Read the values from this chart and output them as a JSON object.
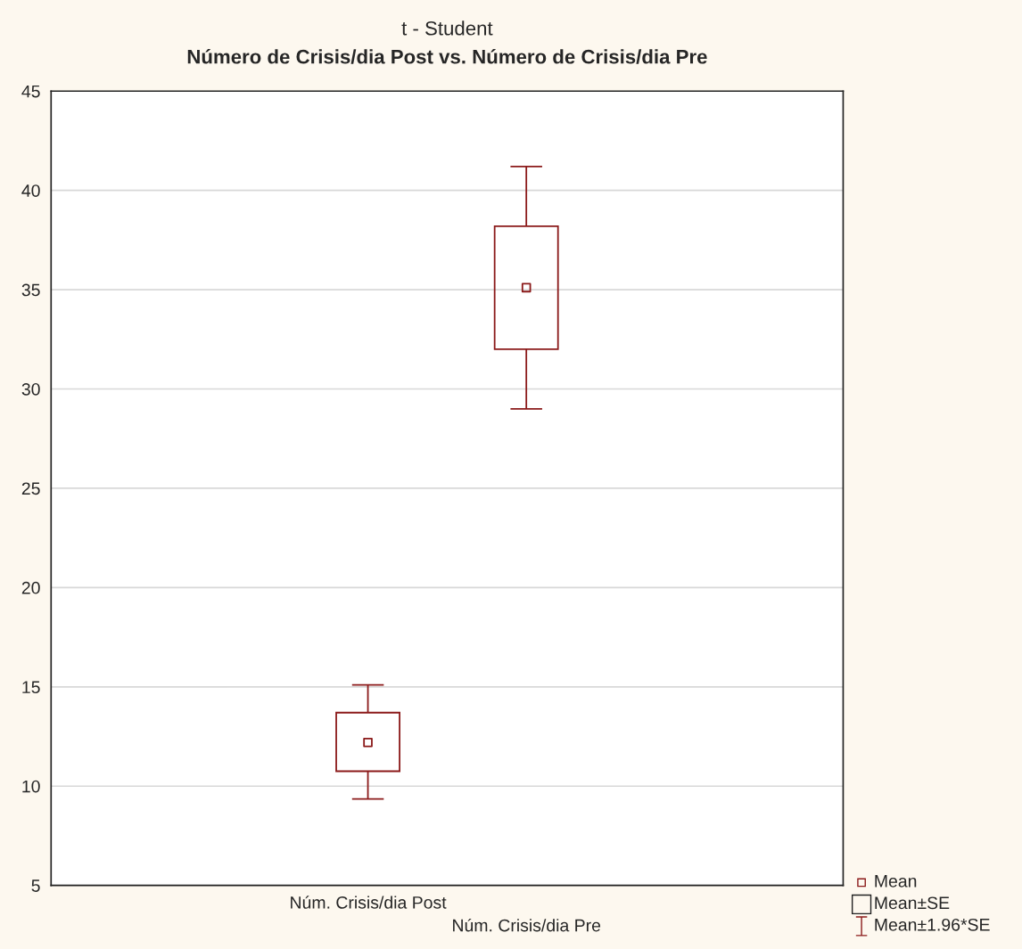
{
  "chart_data": {
    "type": "box",
    "title": "t - Student",
    "subtitle": "Número de Crisis/dia Post vs. Número de Crisis/dia Pre",
    "categories": [
      "Núm. Crisis/dia Post",
      "Núm. Crisis/dia Pre"
    ],
    "boxes": [
      {
        "low": 9.35,
        "q1": 10.75,
        "median": 12.2,
        "q3": 13.7,
        "high": 15.1
      },
      {
        "low": 29.0,
        "q1": 32.0,
        "median": 35.1,
        "q3": 38.2,
        "high": 41.2
      }
    ],
    "color": "#8b1a1a",
    "ylim": [
      5,
      45
    ],
    "yticks": [
      5,
      10,
      15,
      20,
      25,
      30,
      35,
      40,
      45
    ],
    "grid": "y",
    "annotations": [
      "Mean",
      "Mean±SE",
      "Mean±1.96*SE"
    ]
  }
}
